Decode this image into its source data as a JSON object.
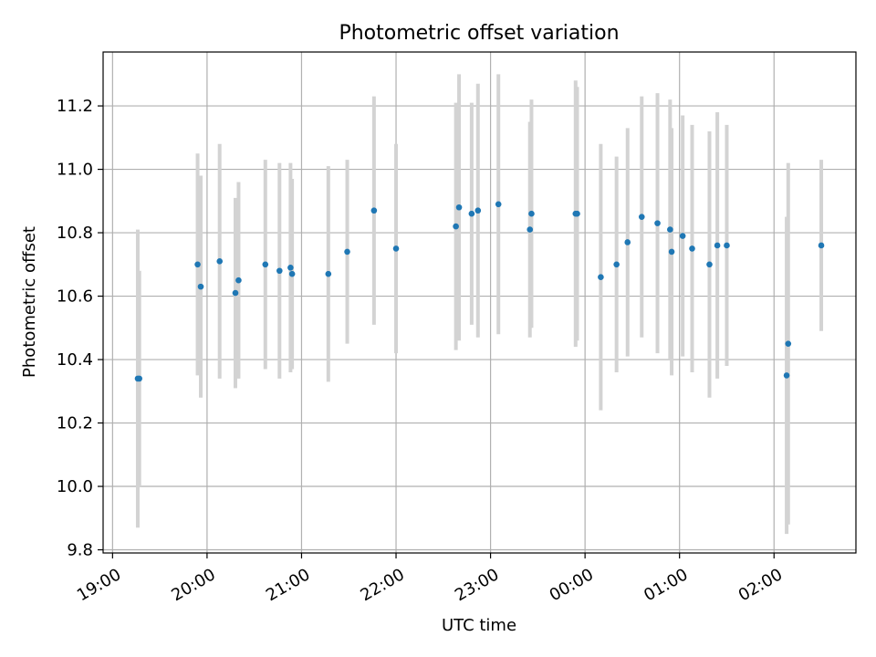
{
  "chart_data": {
    "type": "scatter",
    "title": "Photometric offset variation",
    "xlabel": "UTC time",
    "ylabel": "Photometric offset",
    "x_tick_labels": [
      "19:00",
      "20:00",
      "21:00",
      "22:00",
      "23:00",
      "00:00",
      "01:00",
      "02:00"
    ],
    "y_tick_labels": [
      "9.8",
      "10.0",
      "10.2",
      "10.4",
      "10.6",
      "10.8",
      "11.0",
      "11.2"
    ],
    "y_ticks": [
      9.8,
      10.0,
      10.2,
      10.4,
      10.6,
      10.8,
      11.0,
      11.2
    ],
    "x_tick_minutes": [
      0,
      60,
      120,
      180,
      240,
      300,
      360,
      420
    ],
    "xlim_minutes": [
      -6,
      472
    ],
    "ylim": [
      9.79,
      11.37
    ],
    "grid": true,
    "colors": {
      "point": "#1f77b4",
      "errorbar": "#d3d3d3"
    },
    "points": [
      {
        "t": 16,
        "y": 10.34,
        "err": 0.47
      },
      {
        "t": 17,
        "y": 10.34,
        "err": 0.34
      },
      {
        "t": 54,
        "y": 10.7,
        "err": 0.35
      },
      {
        "t": 56,
        "y": 10.63,
        "err": 0.35
      },
      {
        "t": 68,
        "y": 10.71,
        "err": 0.37
      },
      {
        "t": 78,
        "y": 10.61,
        "err": 0.3
      },
      {
        "t": 80,
        "y": 10.65,
        "err": 0.31
      },
      {
        "t": 97,
        "y": 10.7,
        "err": 0.33
      },
      {
        "t": 106,
        "y": 10.68,
        "err": 0.34
      },
      {
        "t": 113,
        "y": 10.69,
        "err": 0.33
      },
      {
        "t": 114,
        "y": 10.67,
        "err": 0.3
      },
      {
        "t": 137,
        "y": 10.67,
        "err": 0.34
      },
      {
        "t": 149,
        "y": 10.74,
        "err": 0.29
      },
      {
        "t": 166,
        "y": 10.87,
        "err": 0.36
      },
      {
        "t": 180,
        "y": 10.75,
        "err": 0.33
      },
      {
        "t": 218,
        "y": 10.82,
        "err": 0.39
      },
      {
        "t": 220,
        "y": 10.88,
        "err": 0.42
      },
      {
        "t": 228,
        "y": 10.86,
        "err": 0.35
      },
      {
        "t": 232,
        "y": 10.87,
        "err": 0.4
      },
      {
        "t": 245,
        "y": 10.89,
        "err": 0.41
      },
      {
        "t": 265,
        "y": 10.81,
        "err": 0.34
      },
      {
        "t": 266,
        "y": 10.86,
        "err": 0.36
      },
      {
        "t": 294,
        "y": 10.86,
        "err": 0.42
      },
      {
        "t": 295,
        "y": 10.86,
        "err": 0.4
      },
      {
        "t": 310,
        "y": 10.66,
        "err": 0.42
      },
      {
        "t": 320,
        "y": 10.7,
        "err": 0.34
      },
      {
        "t": 327,
        "y": 10.77,
        "err": 0.36
      },
      {
        "t": 336,
        "y": 10.85,
        "err": 0.38
      },
      {
        "t": 346,
        "y": 10.83,
        "err": 0.41
      },
      {
        "t": 354,
        "y": 10.81,
        "err": 0.41
      },
      {
        "t": 355,
        "y": 10.74,
        "err": 0.39
      },
      {
        "t": 362,
        "y": 10.79,
        "err": 0.38
      },
      {
        "t": 368,
        "y": 10.75,
        "err": 0.39
      },
      {
        "t": 379,
        "y": 10.7,
        "err": 0.42
      },
      {
        "t": 384,
        "y": 10.76,
        "err": 0.42
      },
      {
        "t": 390,
        "y": 10.76,
        "err": 0.38
      },
      {
        "t": 428,
        "y": 10.35,
        "err": 0.5
      },
      {
        "t": 429,
        "y": 10.45,
        "err": 0.57
      },
      {
        "t": 450,
        "y": 10.76,
        "err": 0.27
      }
    ]
  }
}
